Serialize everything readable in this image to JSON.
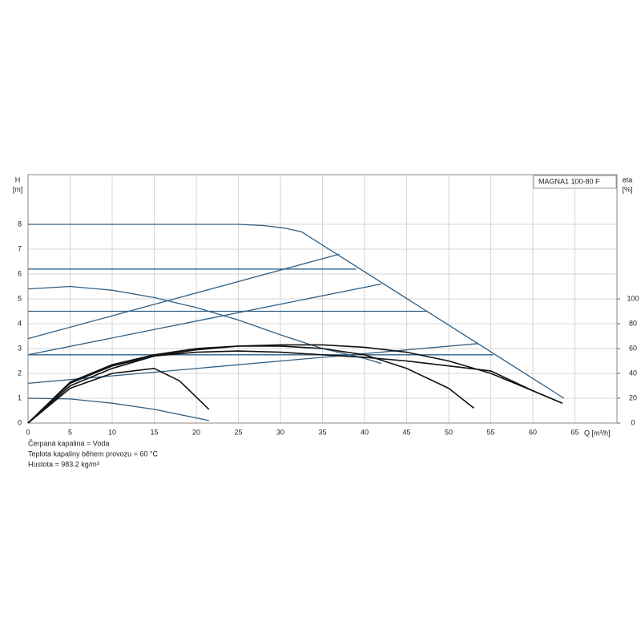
{
  "chart_data": {
    "type": "line",
    "ylabel": "H",
    "ylabel_unit": "[m]",
    "y2label": "eta",
    "y2label_unit": "[%]",
    "xlabel": "Q [m³/h]",
    "label": "MAGNA1 100-80 F",
    "notes": [
      "Čerpaná kapalina = Voda",
      "Teplota kapaliny během provozu = 60 °C",
      "Hustota = 983.2 kg/m³"
    ],
    "xlim": [
      0,
      70
    ],
    "ylim": [
      0,
      10
    ],
    "y2lim": [
      0,
      200
    ],
    "xticks": [
      0,
      5,
      10,
      15,
      20,
      25,
      30,
      35,
      40,
      45,
      50,
      55,
      60,
      65
    ],
    "yticks": [
      0,
      1,
      2,
      3,
      4,
      5,
      6,
      7,
      8
    ],
    "y2ticks": [
      0,
      20,
      40,
      60,
      80,
      100
    ],
    "grid": true,
    "series": [
      {
        "color": "#2f5f85",
        "x": [
          0,
          25,
          28,
          30.5,
          32.5,
          63.7
        ],
        "values": [
          8,
          8,
          7.95,
          7.85,
          7.7,
          1.0
        ]
      },
      {
        "color": "#2f5f85",
        "x": [
          0,
          39
        ],
        "values": [
          6.2,
          6.2
        ]
      },
      {
        "color": "#2f5f85",
        "x": [
          0,
          47.5
        ],
        "values": [
          4.5,
          4.5
        ]
      },
      {
        "color": "#2f5f85",
        "x": [
          0,
          55.3
        ],
        "values": [
          2.75,
          2.75
        ]
      },
      {
        "color": "#2f5f85",
        "x": [
          0,
          37
        ],
        "values": [
          3.4,
          6.8
        ]
      },
      {
        "color": "#2f5f85",
        "x": [
          0,
          42
        ],
        "values": [
          2.75,
          5.6
        ]
      },
      {
        "color": "#2f5f85",
        "x": [
          0,
          53.5
        ],
        "values": [
          1.6,
          3.2
        ]
      },
      {
        "color": "#2f5f85",
        "x": [
          0,
          5,
          10,
          15,
          20,
          25,
          30,
          35,
          40,
          42
        ],
        "values": [
          5.4,
          5.5,
          5.35,
          5.05,
          4.65,
          4.15,
          3.55,
          3.0,
          2.6,
          2.4
        ]
      },
      {
        "color": "#2f5f85",
        "x": [
          0,
          5,
          10,
          15,
          21.5
        ],
        "values": [
          1.0,
          0.97,
          0.8,
          0.55,
          0.1
        ]
      },
      {
        "color": "#111111",
        "axis": "y2",
        "x": [
          0,
          5,
          10,
          15,
          20,
          25,
          30,
          35,
          40,
          45,
          50,
          55,
          60,
          63.5
        ],
        "values": [
          0,
          30,
          44,
          54,
          59,
          62,
          63,
          63,
          61,
          57,
          50,
          40,
          26,
          16
        ]
      },
      {
        "color": "#111111",
        "axis": "y2",
        "x": [
          0,
          5,
          10,
          15,
          20,
          25,
          30,
          35,
          40,
          45,
          50,
          53
        ],
        "values": [
          0,
          33,
          47,
          55,
          60,
          62,
          62,
          60,
          55,
          44,
          28,
          12
        ]
      },
      {
        "color": "#111111",
        "axis": "y2",
        "x": [
          0,
          5,
          10,
          15,
          20,
          25,
          30,
          35,
          40,
          45,
          50,
          55,
          60,
          63.5
        ],
        "values": [
          0,
          32,
          46,
          54,
          57,
          58,
          57,
          55,
          53,
          50,
          46,
          42,
          26,
          16
        ]
      },
      {
        "color": "#111111",
        "axis": "y2",
        "x": [
          0,
          5,
          10,
          15,
          18,
          21.5
        ],
        "values": [
          0,
          28,
          40,
          44,
          34,
          11
        ]
      }
    ]
  }
}
